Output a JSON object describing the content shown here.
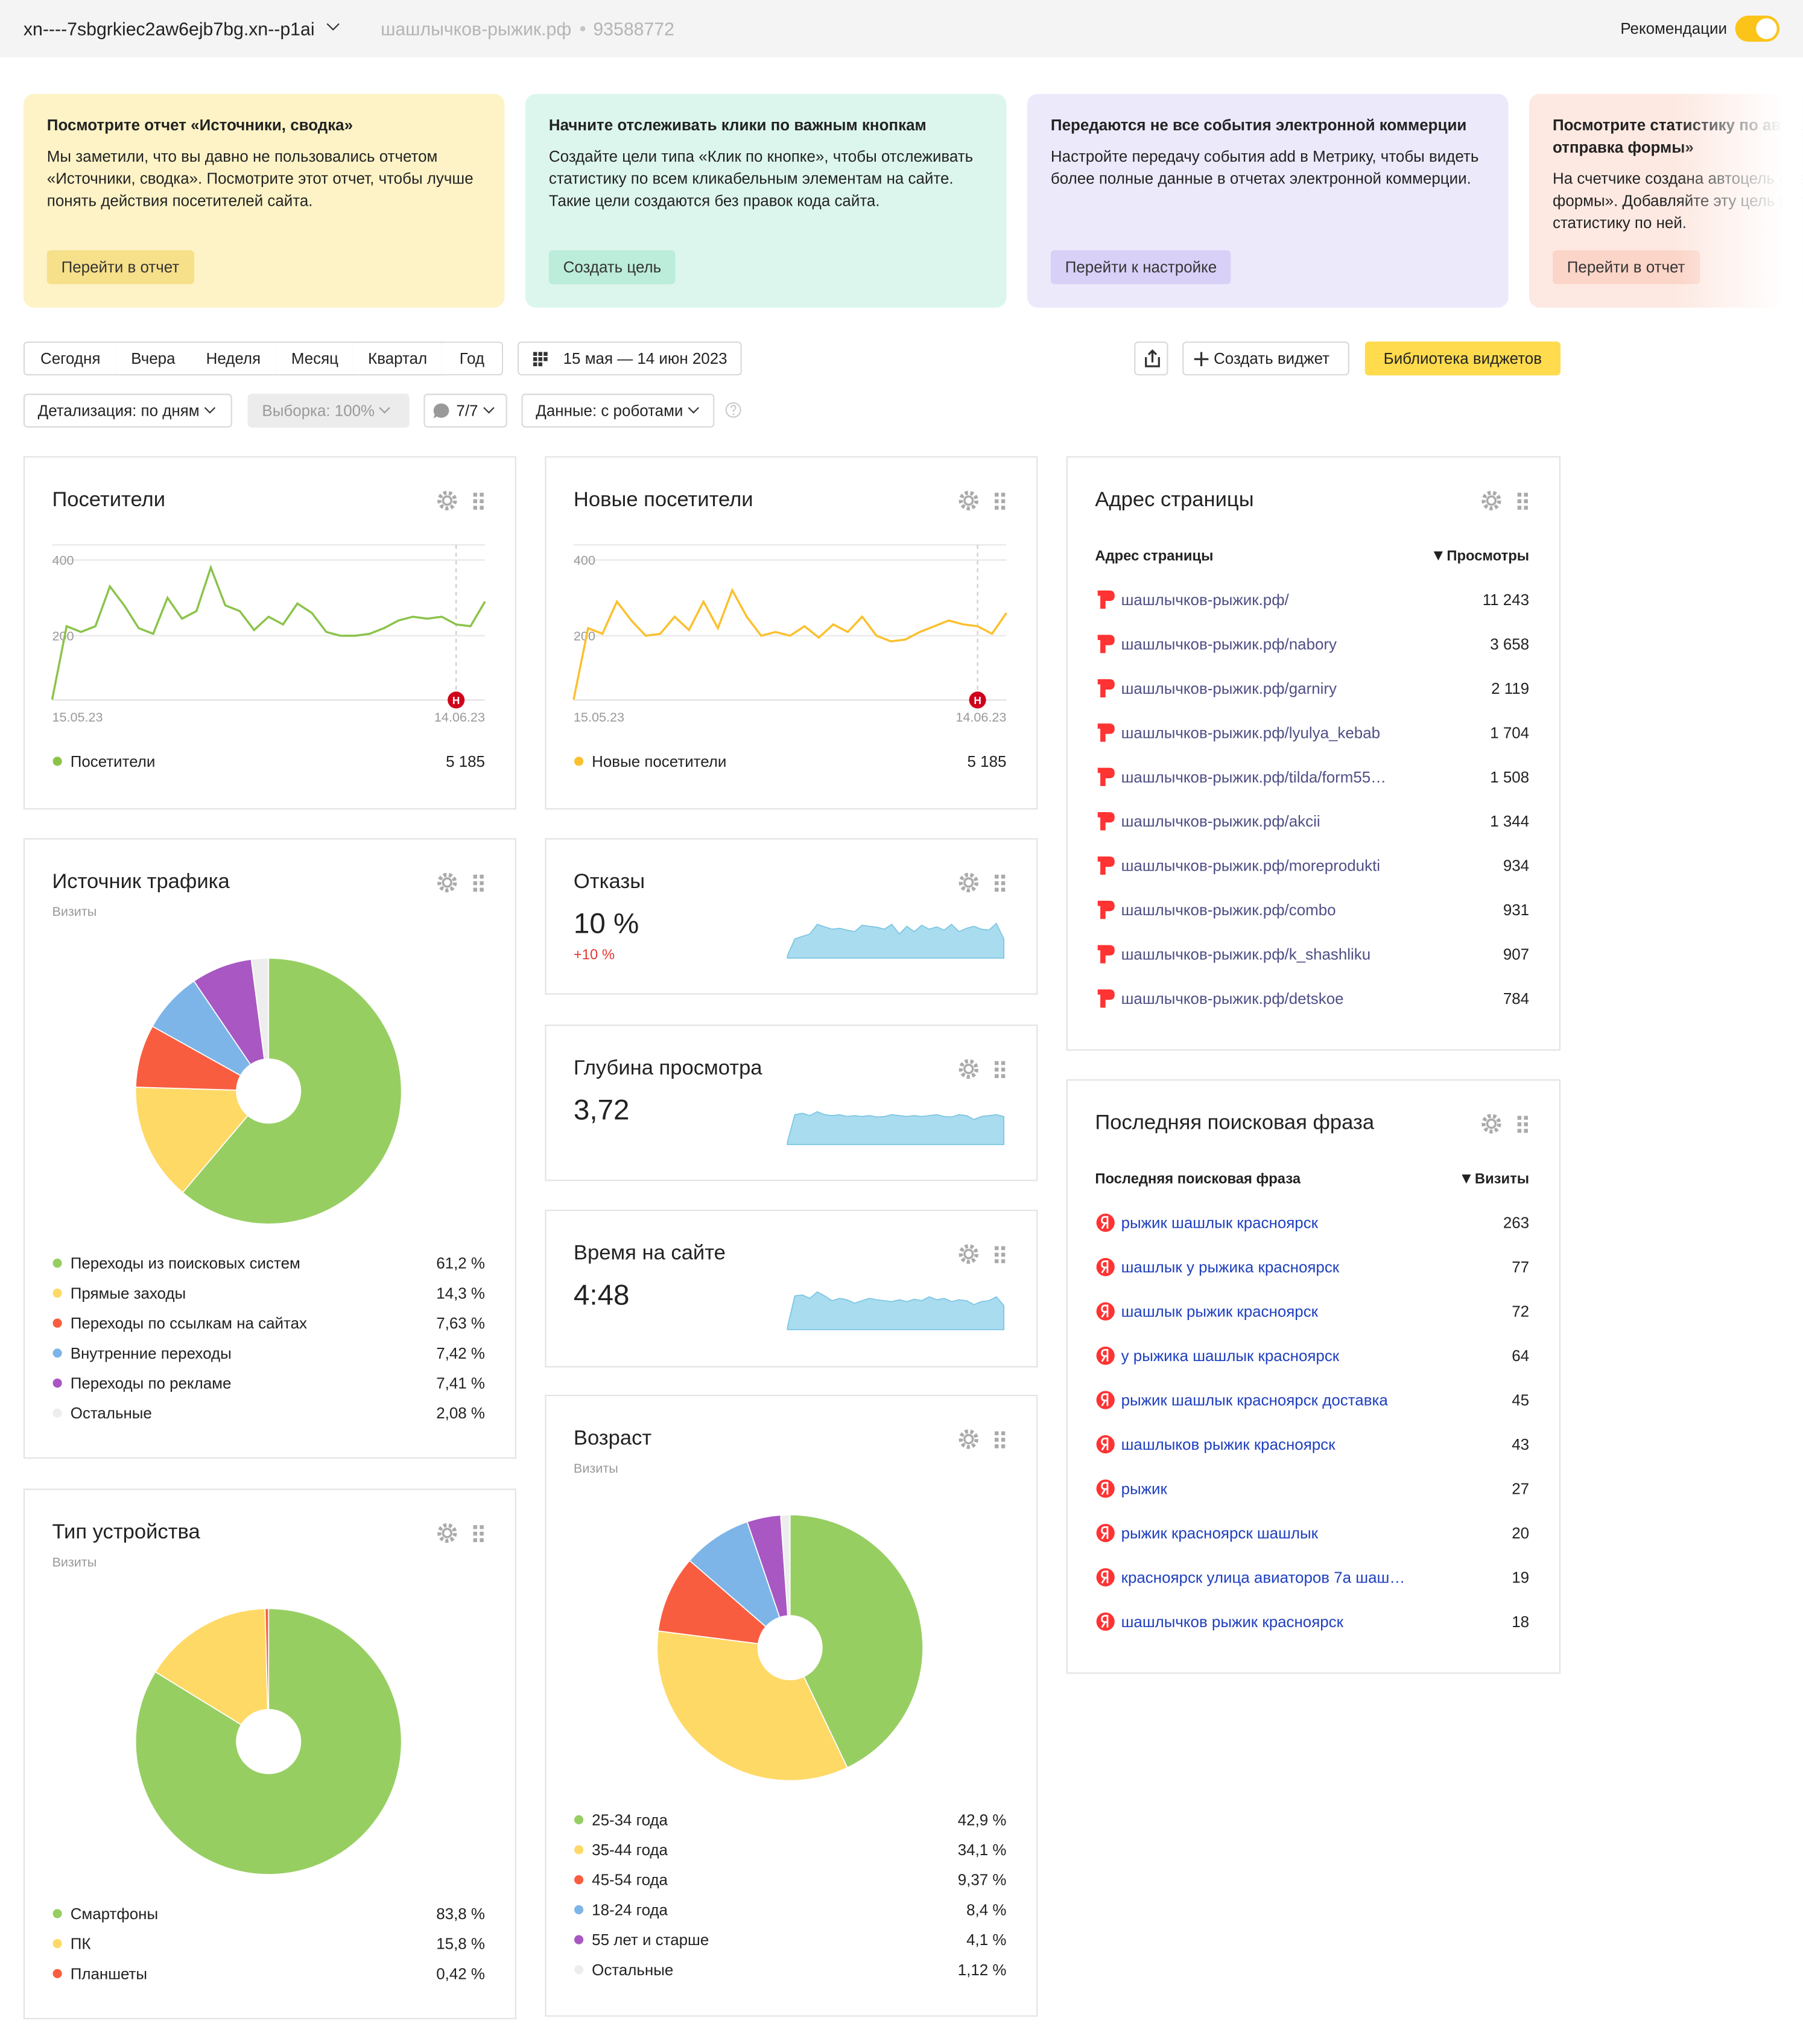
{
  "header": {
    "site": "xn----7sbgrkiec2aw6ejb7bg.xn--p1ai",
    "domain": "шашлычков-рыжик.рф",
    "counter": "93588772",
    "recommendations": "Рекомендации"
  },
  "banners": [
    {
      "title": "Посмотрите отчет «Источники, сводка»",
      "text": "Мы заметили, что вы давно не пользовались отчетом «Источники, сводка». Посмотрите этот отчет, чтобы лучше понять действия посетителей сайта.",
      "button": "Перейти в отчет",
      "color": "#fdf3c6",
      "button_color": "#f7e08a"
    },
    {
      "title": "Начните отслеживать клики по важным кнопкам",
      "text": "Создайте цели типа «Клик по кнопке», чтобы отслеживать статистику по всем кликабельным элементам на сайте. Такие цели создаются без правок кода сайта.",
      "button": "Создать цель",
      "color": "#dcf6ed",
      "button_color": "#bcecda"
    },
    {
      "title": "Передаются не все события электронной коммерции",
      "text": "Настройте передачу события add в Метрику, чтобы видеть более полные данные в отчетах электронной коммерции.",
      "button": "Перейти к настройке",
      "color": "#ece9fb",
      "button_color": "#d8d0f7"
    },
    {
      "title": "Посмотрите статистику по автоцели «Автоцель: отправка формы»",
      "text": "На счетчике создана автоцель «Автоцель: отправка формы». Добавляйте эту цель в отчеты и смотрите статистику по ней.",
      "button": "Перейти в отчет",
      "color": "#fde9e2",
      "button_color": "#fbd5c8"
    }
  ],
  "periods": [
    "Сегодня",
    "Вчера",
    "Неделя",
    "Месяц",
    "Квартал",
    "Год"
  ],
  "date_range": "15 мая — 14 июн 2023",
  "create_widget": "Создать виджет",
  "library": "Библиотека виджетов",
  "filters": [
    "Детализация: по дням",
    "Выборка: 100%",
    "7/7",
    "Данные: с роботами"
  ],
  "widgets": [
    {
      "type": "line",
      "title": "Посетители",
      "chart": {
        "ylim": [
          30,
          440
        ],
        "yticks": [
          200,
          400
        ],
        "x_labels": [
          "15.05.23",
          "14.06.23"
        ],
        "color": "#8bc34a",
        "values": [
          31,
          225,
          210,
          225,
          330,
          280,
          220,
          205,
          300,
          245,
          265,
          380,
          280,
          265,
          215,
          250,
          230,
          285,
          260,
          210,
          200,
          200,
          205,
          220,
          240,
          250,
          245,
          250,
          230,
          225,
          290
        ],
        "annotation": {
          "text": "Н",
          "x": 28
        }
      },
      "legend": {
        "name": "Посетители",
        "total": "5 185"
      }
    },
    {
      "type": "line",
      "title": "Новые посетители",
      "chart": {
        "ylim": [
          30,
          440
        ],
        "yticks": [
          200,
          400
        ],
        "x_labels": [
          "15.05.23",
          "14.06.23"
        ],
        "color": "#fbc02d",
        "values": [
          31,
          220,
          205,
          290,
          240,
          200,
          205,
          250,
          215,
          290,
          220,
          320,
          250,
          200,
          210,
          200,
          225,
          195,
          230,
          210,
          250,
          200,
          185,
          190,
          210,
          225,
          240,
          230,
          225,
          205,
          260
        ],
        "annotation": {
          "text": "Н",
          "x": 28
        }
      },
      "legend": {
        "name": "Новые посетители",
        "total": "5 185"
      }
    },
    {
      "type": "table",
      "title": "Адрес страницы",
      "icon": "page",
      "link_color": "#4f4f86",
      "columns": [
        "Адрес страницы",
        "Просмотры"
      ],
      "rows": [
        [
          "шашлычков-рыжик.рф/",
          "11 243"
        ],
        [
          "шашлычков-рыжик.рф/nabory",
          "3 658"
        ],
        [
          "шашлычков-рыжик.рф/garniry",
          "2 119"
        ],
        [
          "шашлычков-рыжик.рф/lyulya_kebab",
          "1 704"
        ],
        [
          "шашлычков-рыжик.рф/tilda/form55…",
          "1 508"
        ],
        [
          "шашлычков-рыжик.рф/akcii",
          "1 344"
        ],
        [
          "шашлычков-рыжик.рф/moreprodukti",
          "934"
        ],
        [
          "шашлычков-рыжик.рф/combo",
          "931"
        ],
        [
          "шашлычков-рыжик.рф/k_shashliku",
          "907"
        ],
        [
          "шашлычков-рыжик.рф/detskoe",
          "784"
        ]
      ]
    },
    {
      "type": "pie",
      "title": "Источник трафика",
      "subtitle": "Визиты",
      "chart": {
        "values": [
          61.2,
          14.3,
          7.63,
          7.42,
          7.41,
          2.08
        ],
        "value_labels": [
          "61,2 %",
          "14,3 %",
          "7,63 %",
          "7,42 %",
          "7,41 %",
          "2,08 %"
        ],
        "categories": [
          "Переходы из поисковых систем",
          "Прямые заходы",
          "Переходы по ссылкам на сайтах",
          "Внутренние переходы",
          "Переходы по рекламе",
          "Остальные"
        ],
        "colors": [
          "#97ce62",
          "#fed966",
          "#f95d40",
          "#7db5e8",
          "#a857c3",
          "#ededed"
        ]
      }
    },
    {
      "type": "metric",
      "title": "Отказы",
      "value": "10 %",
      "change": "+10 %",
      "spark": {
        "ylim": [
          0,
          100
        ],
        "color": "#a9dcef",
        "values": [
          5,
          40,
          45,
          50,
          70,
          65,
          60,
          62,
          58,
          55,
          68,
          66,
          64,
          60,
          70,
          50,
          66,
          55,
          68,
          60,
          65,
          58,
          70,
          55,
          62,
          66,
          60,
          58,
          72,
          40
        ]
      }
    },
    {
      "type": "metric",
      "title": "Глубина просмотра",
      "value": "3,72",
      "spark": {
        "ylim": [
          0,
          100
        ],
        "color": "#a9dcef",
        "values": [
          5,
          62,
          65,
          60,
          68,
          62,
          60,
          62,
          58,
          60,
          58,
          60,
          57,
          58,
          62,
          60,
          58,
          60,
          58,
          60,
          62,
          58,
          57,
          62,
          60,
          52,
          58,
          60,
          62,
          58
        ]
      }
    },
    {
      "type": "metric",
      "title": "Время на сайте",
      "value": "4:48",
      "spark": {
        "ylim": [
          0,
          100
        ],
        "color": "#a9dcef",
        "values": [
          5,
          70,
          72,
          65,
          78,
          70,
          60,
          65,
          62,
          55,
          60,
          65,
          62,
          60,
          58,
          62,
          58,
          63,
          60,
          68,
          62,
          65,
          58,
          62,
          60,
          52,
          58,
          60,
          68,
          50
        ]
      }
    },
    {
      "type": "table",
      "title": "Последняя поисковая фраза",
      "icon": "search",
      "link_color": "#1f3fbf",
      "columns": [
        "Последняя поисковая фраза",
        "Визиты"
      ],
      "rows": [
        [
          "рыжик шашлык красноярск",
          "263"
        ],
        [
          "шашлык у рыжика красноярск",
          "77"
        ],
        [
          "шашлык рыжик красноярск",
          "72"
        ],
        [
          "у рыжика шашлык красноярск",
          "64"
        ],
        [
          "рыжик шашлык красноярск доставка",
          "45"
        ],
        [
          "шашлыков рыжик красноярск",
          "43"
        ],
        [
          "рыжик",
          "27"
        ],
        [
          "рыжик красноярск шашлык",
          "20"
        ],
        [
          "красноярск улица авиаторов 7а шаш…",
          "19"
        ],
        [
          "шашлычков рыжик красноярск",
          "18"
        ]
      ]
    },
    {
      "type": "pie",
      "title": "Тип устройства",
      "subtitle": "Визиты",
      "chart": {
        "values": [
          83.8,
          15.8,
          0.42
        ],
        "value_labels": [
          "83,8 %",
          "15,8 %",
          "0,42 %"
        ],
        "categories": [
          "Смартфоны",
          "ПК",
          "Планшеты"
        ],
        "colors": [
          "#97ce62",
          "#fed966",
          "#f95d40"
        ]
      }
    },
    {
      "type": "pie",
      "title": "Возраст",
      "subtitle": "Визиты",
      "chart": {
        "values": [
          42.9,
          34.1,
          9.37,
          8.4,
          4.1,
          1.12
        ],
        "value_labels": [
          "42,9 %",
          "34,1 %",
          "9,37 %",
          "8,4 %",
          "4,1 %",
          "1,12 %"
        ],
        "categories": [
          "25-34 года",
          "35-44 года",
          "45-54 года",
          "18-24 года",
          "55 лет и старше",
          "Остальные"
        ],
        "colors": [
          "#97ce62",
          "#fed966",
          "#f95d40",
          "#7db5e8",
          "#a857c3",
          "#ededed"
        ]
      }
    }
  ]
}
